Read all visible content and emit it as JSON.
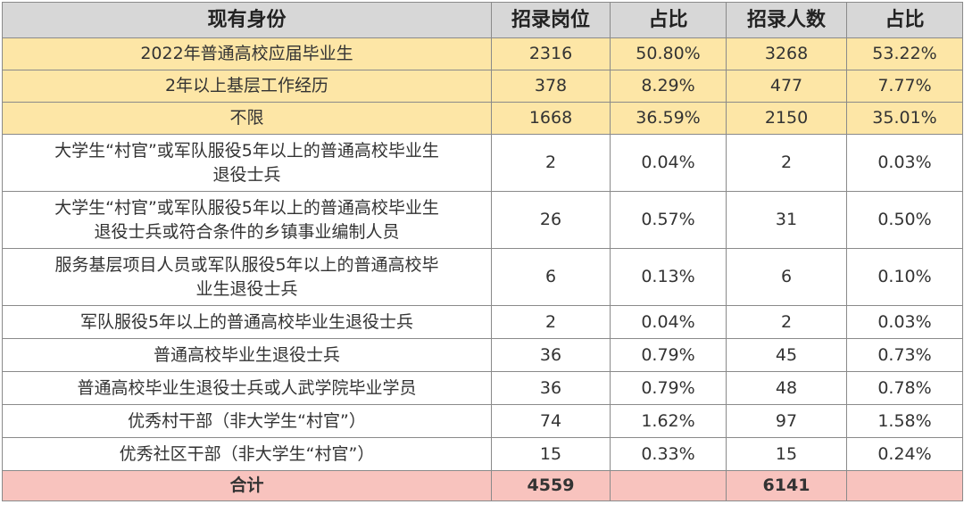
{
  "header": {
    "col_identity": "现有身份",
    "col_positions": "招录岗位",
    "col_positions_pct": "占比",
    "col_people": "招录人数",
    "col_people_pct": "占比"
  },
  "rows": [
    {
      "identity": "2022年普通高校应届毕业生",
      "positions": "2316",
      "positions_pct": "50.80%",
      "people": "3268",
      "people_pct": "53.22%",
      "highlight": true
    },
    {
      "identity": "2年以上基层工作经历",
      "positions": "378",
      "positions_pct": "8.29%",
      "people": "477",
      "people_pct": "7.77%",
      "highlight": true
    },
    {
      "identity": "不限",
      "positions": "1668",
      "positions_pct": "36.59%",
      "people": "2150",
      "people_pct": "35.01%",
      "highlight": true
    },
    {
      "identity_line1": "大学生“村官”或军队服役5年以上的普通高校毕业生",
      "identity_line2": "退役士兵",
      "positions": "2",
      "positions_pct": "0.04%",
      "people": "2",
      "people_pct": "0.03%"
    },
    {
      "identity_line1": "大学生“村官”或军队服役5年以上的普通高校毕业生",
      "identity_line2": "退役士兵或符合条件的乡镇事业编制人员",
      "positions": "26",
      "positions_pct": "0.57%",
      "people": "31",
      "people_pct": "0.50%"
    },
    {
      "identity_line1": "服务基层项目人员或军队服役5年以上的普通高校毕",
      "identity_line2": "业生退役士兵",
      "positions": "6",
      "positions_pct": "0.13%",
      "people": "6",
      "people_pct": "0.10%"
    },
    {
      "identity": "军队服役5年以上的普通高校毕业生退役士兵",
      "positions": "2",
      "positions_pct": "0.04%",
      "people": "2",
      "people_pct": "0.03%"
    },
    {
      "identity": "普通高校毕业生退役士兵",
      "positions": "36",
      "positions_pct": "0.79%",
      "people": "45",
      "people_pct": "0.73%"
    },
    {
      "identity": "普通高校毕业生退役士兵或人武学院毕业学员",
      "positions": "36",
      "positions_pct": "0.79%",
      "people": "48",
      "people_pct": "0.78%"
    },
    {
      "identity": "优秀村干部（非大学生“村官”）",
      "positions": "74",
      "positions_pct": "1.62%",
      "people": "97",
      "people_pct": "1.58%"
    },
    {
      "identity": "优秀社区干部（非大学生“村官”）",
      "positions": "15",
      "positions_pct": "0.33%",
      "people": "15",
      "people_pct": "0.24%"
    }
  ],
  "total": {
    "label": "合计",
    "positions": "4559",
    "positions_pct": "",
    "people": "6141",
    "people_pct": ""
  },
  "colors": {
    "header_bg": "#d7d7d7",
    "highlight_bg": "#fde6a6",
    "total_bg": "#f8c3be",
    "border": "#8a8a8a"
  }
}
